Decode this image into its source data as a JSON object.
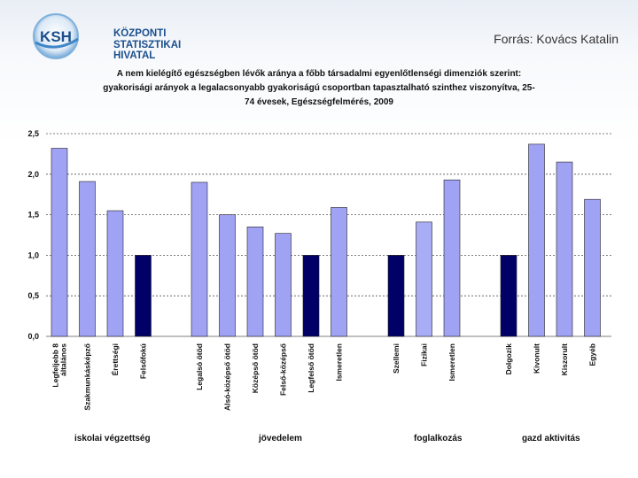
{
  "header": {
    "logo_lines": [
      "KÖZPONTI",
      "STATISZTIKAI",
      "HIVATAL"
    ],
    "logo_abbr": "KSH",
    "source": "Forrás: Kovács Katalin"
  },
  "colors": {
    "bar_light": "#a0a2f4",
    "bar_dark": "#000066",
    "brand": "#1b4f8c"
  },
  "chart_data": {
    "type": "bar",
    "title": "A nem kielégítő egészségben lévők aránya a főbb társadalmi egyenlőtlenségi dimenziók szerint: gyakorisági arányok a legalacsonyabb gyakoriságú csoportban tapasztalható szinthez viszonyítva, 25-74 évesek, Egészségfelmérés, 2009",
    "title_lines": [
      "A nem kielégítő egészségben lévők aránya a főbb társadalmi egyenlőtlenségi dimenziók szerint:",
      "gyakorisági arányok a legalacsonyabb gyakoriságú csoportban tapasztalható szinthez viszonyítva, 25-",
      "74 évesek, Egészségfelmérés, 2009"
    ],
    "ylim": [
      0,
      2.5
    ],
    "yticks": [
      "0,0",
      "0,5",
      "1,0",
      "1,5",
      "2,0",
      "2,5"
    ],
    "grid": true,
    "groups": [
      {
        "name": "iskolai végzettség",
        "bars": [
          {
            "label": "Legfeljebb 8 általános",
            "value": 2.32,
            "style": "light"
          },
          {
            "label": "Szakmunkásképző",
            "value": 1.91,
            "style": "light"
          },
          {
            "label": "Érettségi",
            "value": 1.55,
            "style": "light"
          },
          {
            "label": "Felsőfokú",
            "value": 1.0,
            "style": "dark"
          }
        ]
      },
      {
        "name": "jövedelem",
        "bars": [
          {
            "label": "Legalsó ötöd",
            "value": 1.9,
            "style": "light"
          },
          {
            "label": "Alsó-középső ötöd",
            "value": 1.5,
            "style": "light"
          },
          {
            "label": "Középső ötöd",
            "value": 1.35,
            "style": "light"
          },
          {
            "label": "Felső-középső",
            "value": 1.27,
            "style": "light"
          },
          {
            "label": "Legfelső ötöd",
            "value": 1.0,
            "style": "dark"
          },
          {
            "label": "Ismeretlen",
            "value": 1.59,
            "style": "light"
          }
        ]
      },
      {
        "name": "foglalkozás",
        "bars": [
          {
            "label": "Szellemi",
            "value": 1.0,
            "style": "dark"
          },
          {
            "label": "Fizikai",
            "value": 1.41,
            "style": "lighter"
          },
          {
            "label": "Ismeretlen",
            "value": 1.93,
            "style": "light"
          }
        ]
      },
      {
        "name": "gazd aktivitás",
        "bars": [
          {
            "label": "Dolgozik",
            "value": 1.0,
            "style": "dark"
          },
          {
            "label": "Kivonult",
            "value": 2.37,
            "style": "light"
          },
          {
            "label": "Kiszorult",
            "value": 2.15,
            "style": "light"
          },
          {
            "label": "Egyéb",
            "value": 1.69,
            "style": "light"
          }
        ]
      }
    ]
  }
}
